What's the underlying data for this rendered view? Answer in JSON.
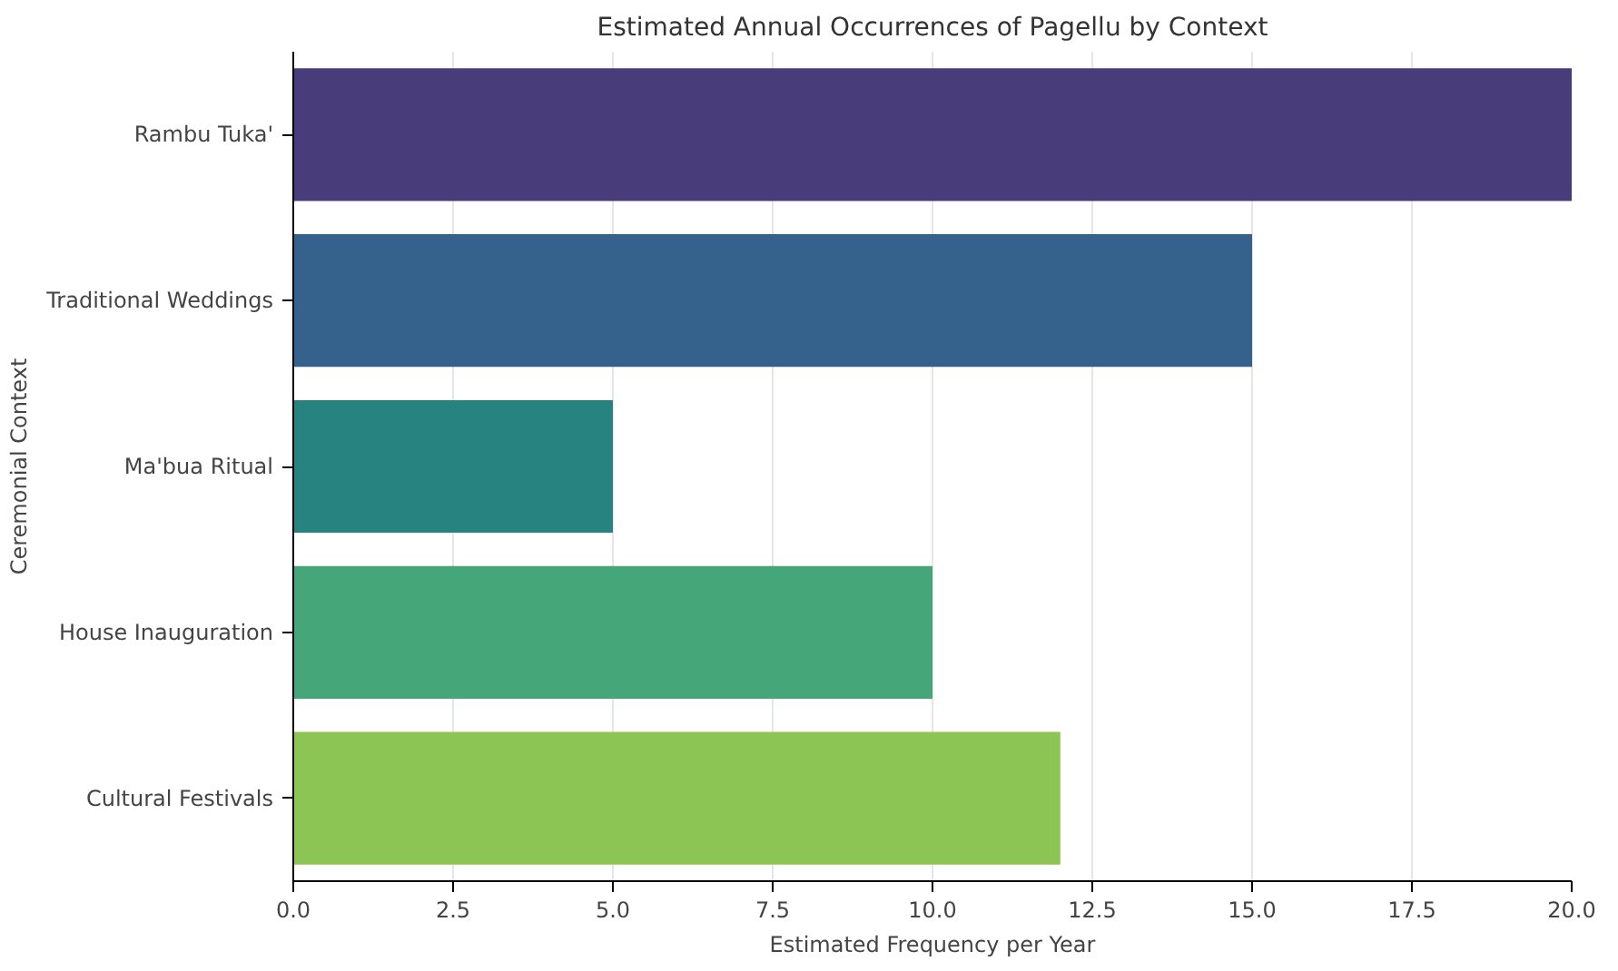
{
  "chart_data": {
    "type": "bar",
    "orientation": "horizontal",
    "title": "Estimated Annual Occurrences of Pagellu by Context",
    "xlabel": "Estimated Frequency per Year",
    "ylabel": "Ceremonial Context",
    "categories": [
      "Rambu Tuka'",
      "Traditional Weddings",
      "Ma'bua Ritual",
      "House Inauguration",
      "Cultural Festivals"
    ],
    "values": [
      20,
      15,
      5,
      10,
      12
    ],
    "colors": [
      "#483d7a",
      "#35618d",
      "#27837f",
      "#44a679",
      "#8cc553"
    ],
    "xlim": [
      0,
      20
    ],
    "xticks": [
      {
        "value": 0,
        "label": "0.0"
      },
      {
        "value": 2.5,
        "label": "2.5"
      },
      {
        "value": 5,
        "label": "5.0"
      },
      {
        "value": 7.5,
        "label": "7.5"
      },
      {
        "value": 10,
        "label": "10.0"
      },
      {
        "value": 12.5,
        "label": "12.5"
      },
      {
        "value": 15,
        "label": "15.0"
      },
      {
        "value": 17.5,
        "label": "17.5"
      },
      {
        "value": 20,
        "label": "20.0"
      }
    ],
    "grid": "x"
  }
}
